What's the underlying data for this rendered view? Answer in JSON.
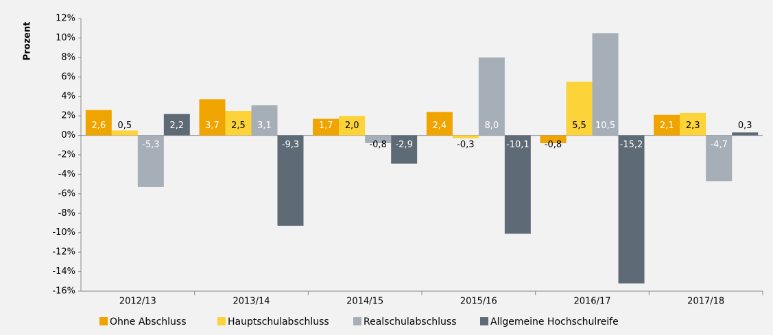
{
  "chart_data": {
    "type": "bar",
    "y_label": "Prozent",
    "categories": [
      "2012/13",
      "2013/14",
      "2014/15",
      "2015/16",
      "2016/17",
      "2017/18"
    ],
    "series": [
      {
        "name": "Ohne Abschluss",
        "color": "#f0a400",
        "values": [
          2.6,
          3.7,
          1.7,
          2.4,
          -0.8,
          2.1
        ],
        "value_labels": [
          "2,6",
          "3,7",
          "1,7",
          "2,4",
          "-0,8",
          "2,1"
        ]
      },
      {
        "name": "Hauptschulabschluss",
        "color": "#fdd33a",
        "values": [
          0.5,
          2.5,
          2.0,
          -0.3,
          5.5,
          2.3
        ],
        "value_labels": [
          "0,5",
          "2,5",
          "2,0",
          "-0,3",
          "5,5",
          "2,3"
        ]
      },
      {
        "name": "Realschulabschluss",
        "color": "#a6aeb8",
        "values": [
          -5.3,
          3.1,
          -0.8,
          8.0,
          10.5,
          -4.7
        ],
        "value_labels": [
          "-5,3",
          "3,1",
          "-0,8",
          "8,0",
          "10,5",
          "-4,7"
        ]
      },
      {
        "name": "Allgemeine Hochschulreife",
        "color": "#5e6a76",
        "values": [
          2.2,
          -9.3,
          -2.9,
          -10.1,
          -15.2,
          0.3
        ],
        "value_labels": [
          "2,2",
          "-9,3",
          "-2,9",
          "-10,1",
          "-15,2",
          "0,3"
        ]
      }
    ],
    "ylim": [
      -16,
      12
    ],
    "yticks": [
      {
        "value": 12,
        "label": "12%"
      },
      {
        "value": 10,
        "label": "10%"
      },
      {
        "value": 8,
        "label": "8%"
      },
      {
        "value": 6,
        "label": "6%"
      },
      {
        "value": 4,
        "label": "4%"
      },
      {
        "value": 2,
        "label": "2%"
      },
      {
        "value": 0,
        "label": "0%"
      },
      {
        "value": -2,
        "label": "-2%"
      },
      {
        "value": -4,
        "label": "-4%"
      },
      {
        "value": -6,
        "label": "-6%"
      },
      {
        "value": -8,
        "label": "-8%"
      },
      {
        "value": -10,
        "label": "-10%"
      },
      {
        "value": -12,
        "label": "-12%"
      },
      {
        "value": -14,
        "label": "-14%"
      },
      {
        "value": -16,
        "label": "-16%"
      }
    ],
    "legend": "bottom"
  }
}
